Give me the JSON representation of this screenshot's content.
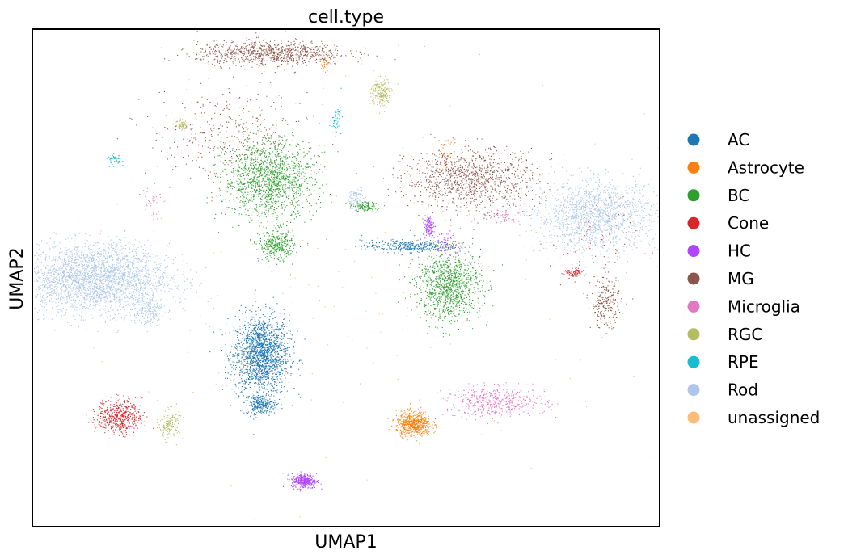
{
  "chart_data": {
    "type": "scatter",
    "title": "cell.type",
    "xlabel": "UMAP1",
    "ylabel": "UMAP2",
    "xlim": [
      -10,
      15
    ],
    "ylim": [
      -10,
      10
    ],
    "grid": false,
    "legend_position": "right",
    "series": [
      {
        "name": "AC",
        "color": "#1f77b4",
        "clusters": [
          {
            "x": -0.9,
            "y": -3.1,
            "sx": 0.55,
            "sy": 0.8,
            "n": 1800
          },
          {
            "x": -0.9,
            "y": -5.1,
            "sx": 0.3,
            "sy": 0.2,
            "n": 250
          },
          {
            "x": 4.9,
            "y": 1.3,
            "sx": 0.9,
            "sy": 0.12,
            "n": 350
          }
        ]
      },
      {
        "name": "Astrocyte",
        "color": "#ff7f0e",
        "clusters": [
          {
            "x": 5.2,
            "y": -5.9,
            "sx": 0.35,
            "sy": 0.25,
            "n": 600
          },
          {
            "x": 1.6,
            "y": 8.8,
            "sx": 0.08,
            "sy": 0.2,
            "n": 40
          },
          {
            "x": 6.5,
            "y": 5.0,
            "sx": 0.15,
            "sy": 0.3,
            "n": 40
          }
        ]
      },
      {
        "name": "BC",
        "color": "#2ca02c",
        "clusters": [
          {
            "x": -0.6,
            "y": 4.0,
            "sx": 0.9,
            "sy": 0.8,
            "n": 1500
          },
          {
            "x": -0.3,
            "y": 1.3,
            "sx": 0.35,
            "sy": 0.3,
            "n": 350
          },
          {
            "x": 6.6,
            "y": -0.3,
            "sx": 0.65,
            "sy": 0.7,
            "n": 1100
          },
          {
            "x": 3.2,
            "y": 2.9,
            "sx": 0.3,
            "sy": 0.1,
            "n": 120
          }
        ]
      },
      {
        "name": "Cone",
        "color": "#d62728",
        "clusters": [
          {
            "x": -6.6,
            "y": -5.6,
            "sx": 0.45,
            "sy": 0.35,
            "n": 500
          },
          {
            "x": 11.6,
            "y": 0.2,
            "sx": 0.2,
            "sy": 0.1,
            "n": 80
          },
          {
            "x": 12.4,
            "y": 1.4,
            "sx": 0.9,
            "sy": 0.9,
            "n": 60
          }
        ]
      },
      {
        "name": "HC",
        "color": "#b044ff",
        "clusters": [
          {
            "x": 0.8,
            "y": -8.2,
            "sx": 0.25,
            "sy": 0.15,
            "n": 350
          },
          {
            "x": 5.8,
            "y": 2.1,
            "sx": 0.1,
            "sy": 0.2,
            "n": 120
          },
          {
            "x": 6.5,
            "y": 1.4,
            "sx": 0.3,
            "sy": 0.25,
            "n": 80
          }
        ]
      },
      {
        "name": "MG",
        "color": "#8c564b",
        "clusters": [
          {
            "x": -0.5,
            "y": 9.1,
            "sx": 1.5,
            "sy": 0.25,
            "n": 900
          },
          {
            "x": -2.2,
            "y": 5.8,
            "sx": 1.6,
            "sy": 0.9,
            "n": 400
          },
          {
            "x": 7.5,
            "y": 4.0,
            "sx": 1.3,
            "sy": 0.6,
            "n": 1200
          },
          {
            "x": 12.9,
            "y": -1.0,
            "sx": 0.3,
            "sy": 0.5,
            "n": 250
          }
        ]
      },
      {
        "name": "Microglia",
        "color": "#e377c2",
        "clusters": [
          {
            "x": 8.5,
            "y": -5.0,
            "sx": 1.0,
            "sy": 0.3,
            "n": 500
          },
          {
            "x": 8.8,
            "y": 2.5,
            "sx": 0.5,
            "sy": 0.15,
            "n": 60
          },
          {
            "x": -5.3,
            "y": 3.2,
            "sx": 0.2,
            "sy": 0.4,
            "n": 40
          }
        ]
      },
      {
        "name": "RGC",
        "color": "#b5bd61",
        "clusters": [
          {
            "x": 3.9,
            "y": 7.5,
            "sx": 0.2,
            "sy": 0.3,
            "n": 200
          },
          {
            "x": -4.6,
            "y": -5.9,
            "sx": 0.2,
            "sy": 0.3,
            "n": 150
          },
          {
            "x": -4.1,
            "y": 6.2,
            "sx": 0.12,
            "sy": 0.1,
            "n": 60
          }
        ]
      },
      {
        "name": "RPE",
        "color": "#17becf",
        "clusters": [
          {
            "x": 2.1,
            "y": 6.4,
            "sx": 0.1,
            "sy": 0.3,
            "n": 60
          },
          {
            "x": -6.8,
            "y": 4.8,
            "sx": 0.15,
            "sy": 0.1,
            "n": 50
          }
        ]
      },
      {
        "name": "Rod",
        "color": "#aec7e8",
        "clusters": [
          {
            "x": -7.6,
            "y": 0.0,
            "sx": 1.5,
            "sy": 0.7,
            "n": 3000
          },
          {
            "x": 12.5,
            "y": 2.5,
            "sx": 1.2,
            "sy": 0.7,
            "n": 1600
          },
          {
            "x": -5.5,
            "y": -1.3,
            "sx": 0.35,
            "sy": 0.3,
            "n": 200
          },
          {
            "x": 2.9,
            "y": 3.3,
            "sx": 0.15,
            "sy": 0.2,
            "n": 80
          }
        ]
      },
      {
        "name": "unassigned",
        "color": "#ffbb78",
        "clusters": [
          {
            "x": 3.0,
            "y": 0.0,
            "sx": 6.0,
            "sy": 4.0,
            "n": 200
          }
        ]
      }
    ]
  }
}
